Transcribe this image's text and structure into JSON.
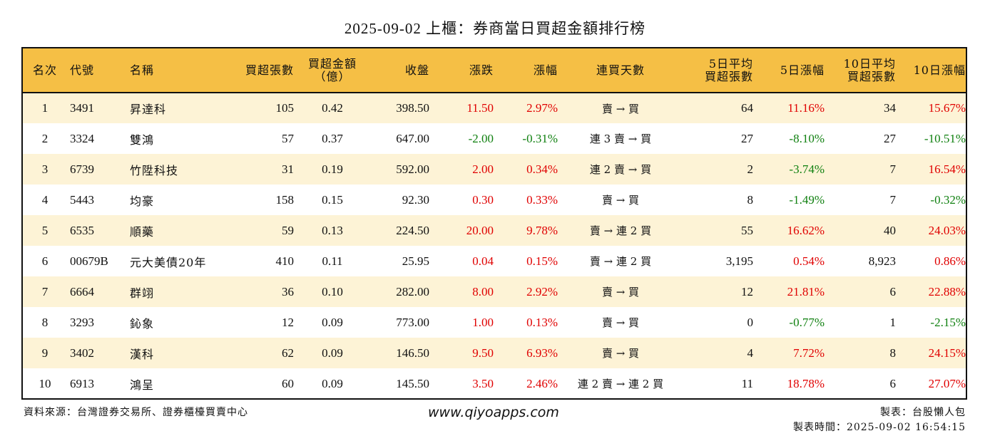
{
  "title": "2025-09-02 上櫃：券商當日買超金額排行榜",
  "headers": {
    "rank": "名次",
    "code": "代號",
    "name": "名稱",
    "net_buy_lots": "買超張數",
    "net_buy_amount_1": "買超金額",
    "net_buy_amount_2": "（億）",
    "close": "收盤",
    "change": "漲跌",
    "change_pct": "漲幅",
    "trend": "連買天數",
    "avg5_1": "5日平均",
    "avg5_2": "買超張數",
    "chg5": "5日漲幅",
    "avg10_1": "10日平均",
    "avg10_2": "買超張數",
    "chg10": "10日漲幅"
  },
  "rows": [
    {
      "rank": "1",
      "code": "3491",
      "name": "昇達科",
      "lots": "105",
      "amount": "0.42",
      "close": "398.50",
      "change": "11.50",
      "change_pct": "2.97%",
      "trend": "賣 → 買",
      "avg5": "64",
      "chg5": "11.16%",
      "avg10": "34",
      "chg10": "15.67%"
    },
    {
      "rank": "2",
      "code": "3324",
      "name": "雙鴻",
      "lots": "57",
      "amount": "0.37",
      "close": "647.00",
      "change": "-2.00",
      "change_pct": "-0.31%",
      "trend": "連 3 賣 → 買",
      "avg5": "27",
      "chg5": "-8.10%",
      "avg10": "27",
      "chg10": "-10.51%"
    },
    {
      "rank": "3",
      "code": "6739",
      "name": "竹陞科技",
      "lots": "31",
      "amount": "0.19",
      "close": "592.00",
      "change": "2.00",
      "change_pct": "0.34%",
      "trend": "連 2 賣 → 買",
      "avg5": "2",
      "chg5": "-3.74%",
      "avg10": "7",
      "chg10": "16.54%"
    },
    {
      "rank": "4",
      "code": "5443",
      "name": "均豪",
      "lots": "158",
      "amount": "0.15",
      "close": "92.30",
      "change": "0.30",
      "change_pct": "0.33%",
      "trend": "賣 → 買",
      "avg5": "8",
      "chg5": "-1.49%",
      "avg10": "7",
      "chg10": "-0.32%"
    },
    {
      "rank": "5",
      "code": "6535",
      "name": "順藥",
      "lots": "59",
      "amount": "0.13",
      "close": "224.50",
      "change": "20.00",
      "change_pct": "9.78%",
      "trend": "賣 → 連 2 買",
      "avg5": "55",
      "chg5": "16.62%",
      "avg10": "40",
      "chg10": "24.03%"
    },
    {
      "rank": "6",
      "code": "00679B",
      "name": "元大美債20年",
      "lots": "410",
      "amount": "0.11",
      "close": "25.95",
      "change": "0.04",
      "change_pct": "0.15%",
      "trend": "賣 → 連 2 買",
      "avg5": "3,195",
      "chg5": "0.54%",
      "avg10": "8,923",
      "chg10": "0.86%"
    },
    {
      "rank": "7",
      "code": "6664",
      "name": "群翊",
      "lots": "36",
      "amount": "0.10",
      "close": "282.00",
      "change": "8.00",
      "change_pct": "2.92%",
      "trend": "賣 → 買",
      "avg5": "12",
      "chg5": "21.81%",
      "avg10": "6",
      "chg10": "22.88%"
    },
    {
      "rank": "8",
      "code": "3293",
      "name": "鈊象",
      "lots": "12",
      "amount": "0.09",
      "close": "773.00",
      "change": "1.00",
      "change_pct": "0.13%",
      "trend": "賣 → 買",
      "avg5": "0",
      "chg5": "-0.77%",
      "avg10": "1",
      "chg10": "-2.15%"
    },
    {
      "rank": "9",
      "code": "3402",
      "name": "漢科",
      "lots": "62",
      "amount": "0.09",
      "close": "146.50",
      "change": "9.50",
      "change_pct": "6.93%",
      "trend": "賣 → 買",
      "avg5": "4",
      "chg5": "7.72%",
      "avg10": "8",
      "chg10": "24.15%"
    },
    {
      "rank": "10",
      "code": "6913",
      "name": "鴻呈",
      "lots": "60",
      "amount": "0.09",
      "close": "145.50",
      "change": "3.50",
      "change_pct": "2.46%",
      "trend": "連 2 賣 → 連 2 買",
      "avg5": "11",
      "chg5": "18.78%",
      "avg10": "6",
      "chg10": "27.07%"
    }
  ],
  "footer": {
    "source": "資料來源：台灣證券交易所、證券櫃檯買賣中心",
    "url": "www.qiyoapps.com",
    "maker": "製表：台股懶人包",
    "time": "製表時間：2025-09-02 16:54:15"
  },
  "colors": {
    "header_bg": "#f5bf45",
    "odd_row_bg": "#fdf3d6",
    "up": "#e00000",
    "down": "#108010"
  }
}
